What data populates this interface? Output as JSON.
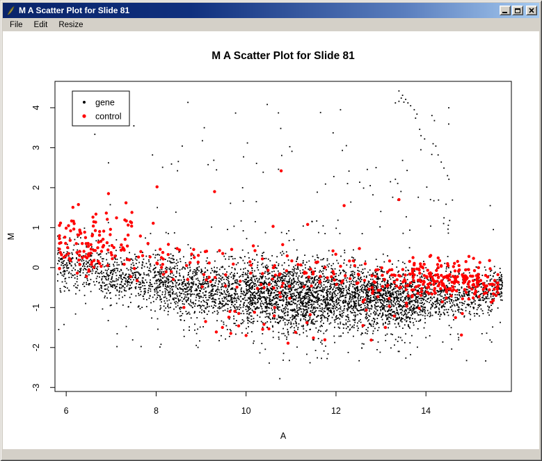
{
  "window": {
    "title": "M A Scatter Plot for Slide 81",
    "icons": {
      "window_icon": "feather-quill-icon",
      "minimize": "minimize-icon",
      "maximize": "maximize-icon",
      "close": "close-icon"
    }
  },
  "menu": {
    "items": [
      "File",
      "Edit",
      "Resize"
    ]
  },
  "chart_data": {
    "type": "scatter",
    "title": "M A Scatter Plot for Slide 81",
    "xlabel": "A",
    "ylabel": "M",
    "xlim": [
      5.75,
      15.9
    ],
    "ylim": [
      -3.1,
      4.66
    ],
    "x_ticks": [
      6,
      8,
      10,
      12,
      14
    ],
    "y_ticks": [
      -3,
      -2,
      -1,
      0,
      1,
      2,
      3,
      4
    ],
    "grid": false,
    "background": "#ffffff",
    "legend": {
      "position": "top-left",
      "entries": [
        {
          "label": "gene",
          "color": "#000000"
        },
        {
          "label": "control",
          "color": "#ff0000"
        }
      ]
    },
    "generator": {
      "seed": 42,
      "description": "MA plot of ~5300 gene spots (small black points) and ~550 control spots (larger red points). Black mass forms a dense band dipping from M~0.1 at A=6 to M~-0.75 around A=12-14, with a long sparse lower tail to M~-2.8 and sparse upper outliers to M~4.4 including a diagonal streak from (13.4,4.4) to (14.6,1.7). Red controls cluster at low A (6-8, M 0-1.5), ride along the top of the black band, and form a dense cluster at A 13-15.5 near M -0.3.",
      "series": [
        {
          "name": "gene",
          "color": "#000000",
          "marker": "square",
          "size": 1.8,
          "clusters": [
            {
              "kind": "band",
              "n": 5200,
              "a_bins": [
                [
                  5.8,
                  8,
                  0.13
                ],
                [
                  8,
                  10,
                  0.18
                ],
                [
                  10,
                  12,
                  0.3
                ],
                [
                  12,
                  14,
                  0.27
                ],
                [
                  14,
                  15.7,
                  0.12
                ]
              ],
              "center_curve": [
                [
                  5.8,
                  0.1
                ],
                [
                  7,
                  -0.15
                ],
                [
                  9,
                  -0.5
                ],
                [
                  11,
                  -0.68
                ],
                [
                  13,
                  -0.75
                ],
                [
                  15,
                  -0.72
                ],
                [
                  15.7,
                  -0.5
                ]
              ],
              "sd_curve": [
                [
                  5.8,
                  0.3
                ],
                [
                  8,
                  0.35
                ],
                [
                  11,
                  0.44
                ],
                [
                  13,
                  0.4
                ],
                [
                  15.7,
                  0.22
                ]
              ],
              "low_tail_prob": 0.09,
              "low_tail_scale": 0.55
            },
            {
              "kind": "spray",
              "n": 95,
              "a_range": [
                6.4,
                14.6
              ],
              "a_pow": 0.8,
              "m_base": 0.85,
              "m_span": 3.3,
              "m_pow": 2.2
            },
            {
              "kind": "points",
              "points": [
                [
                  13.4,
                  4.42
                ],
                [
                  13.48,
                  4.31
                ],
                [
                  13.45,
                  4.24
                ],
                [
                  13.55,
                  4.21
                ],
                [
                  13.51,
                  4.14
                ],
                [
                  13.6,
                  4.12
                ],
                [
                  13.4,
                  4.16
                ],
                [
                  13.32,
                  4.12
                ],
                [
                  13.66,
                  4.05
                ],
                [
                  13.74,
                  3.95
                ],
                [
                  13.8,
                  3.84
                ],
                [
                  13.77,
                  3.74
                ],
                [
                  13.86,
                  3.46
                ],
                [
                  13.89,
                  3.3
                ],
                [
                  13.97,
                  3.22
                ],
                [
                  14.16,
                  3.1
                ],
                [
                  14.22,
                  3.04
                ],
                [
                  14.13,
                  2.83
                ],
                [
                  14.27,
                  2.82
                ],
                [
                  14.34,
                  2.64
                ],
                [
                  14.4,
                  2.49
                ],
                [
                  14.48,
                  2.3
                ],
                [
                  14.51,
                  2.21
                ],
                [
                  14.59,
                  1.69
                ],
                [
                  14.1,
                  1.7
                ],
                [
                  14.28,
                  1.69
                ],
                [
                  12.89,
                  2.5
                ],
                [
                  12.76,
                  2.05
                ],
                [
                  13.58,
                  2.43
                ],
                [
                  13.32,
                  2.21
                ],
                [
                  13.26,
                  1.76
                ],
                [
                  13.83,
                  1.76
                ],
                [
                  10.47,
                  4.08
                ],
                [
                  10.72,
                  3.87
                ],
                [
                  9.07,
                  3.5
                ],
                [
                  8.58,
                  3.04
                ],
                [
                  12.1,
                  3.95
                ],
                [
                  7.92,
                  2.82
                ],
                [
                  6.94,
                  2.62
                ],
                [
                  10.75,
                  -2.78
                ],
                [
                  15.43,
                  1.55
                ],
                [
                  15.5,
                  0.95
                ]
              ]
            }
          ]
        },
        {
          "name": "control",
          "color": "#ff0000",
          "marker": "circle",
          "size": 2.2,
          "clusters": [
            {
              "kind": "gauss2",
              "n": 130,
              "cx": 6.6,
              "cy": 0.6,
              "sx": 0.55,
              "sy": 0.4,
              "slope": -0.15,
              "clip_a": [
                5.85,
                8.6
              ]
            },
            {
              "kind": "band",
              "n": 210,
              "a_bins": [
                [
                  8,
                  10,
                  0.22
                ],
                [
                  10,
                  12,
                  0.26
                ],
                [
                  12,
                  14,
                  0.27
                ],
                [
                  14,
                  15.6,
                  0.25
                ]
              ],
              "center_curve": [
                [
                  8,
                  0.1
                ],
                [
                  10,
                  -0.05
                ],
                [
                  12,
                  -0.15
                ],
                [
                  14,
                  -0.28
                ],
                [
                  15.6,
                  -0.35
                ]
              ],
              "sd_curve": [
                [
                  8,
                  0.35
                ],
                [
                  12,
                  0.3
                ],
                [
                  15.6,
                  0.22
                ]
              ],
              "low_tail_prob": 0.04,
              "low_tail_scale": 0.7
            },
            {
              "kind": "gauss2",
              "n": 165,
              "cx": 14.25,
              "cy": -0.32,
              "sx": 0.72,
              "sy": 0.26,
              "slope": 0,
              "clip_a": [
                12.3,
                15.6
              ]
            },
            {
              "kind": "spray",
              "n": 22,
              "a_range": [
                8.6,
                13.6
              ],
              "a_pow": 1,
              "m_base": -0.95,
              "m_span": -0.95,
              "m_pow": 1.6
            },
            {
              "kind": "points",
              "points": [
                [
                  10.78,
                  2.42
                ],
                [
                  12.18,
                  1.55
                ],
                [
                  10.6,
                  1.03
                ],
                [
                  11.37,
                  1.08
                ],
                [
                  13.4,
                  1.7
                ],
                [
                  9.3,
                  1.9
                ],
                [
                  6.94,
                  1.85
                ],
                [
                  7.33,
                  1.62
                ],
                [
                  8.02,
                  2.02
                ],
                [
                  12.6,
                  -1.45
                ],
                [
                  11.1,
                  -1.62
                ],
                [
                  10.0,
                  -1.7
                ],
                [
                  9.1,
                  -1.35
                ],
                [
                  13.1,
                  -1.5
                ]
              ]
            }
          ]
        }
      ]
    }
  }
}
